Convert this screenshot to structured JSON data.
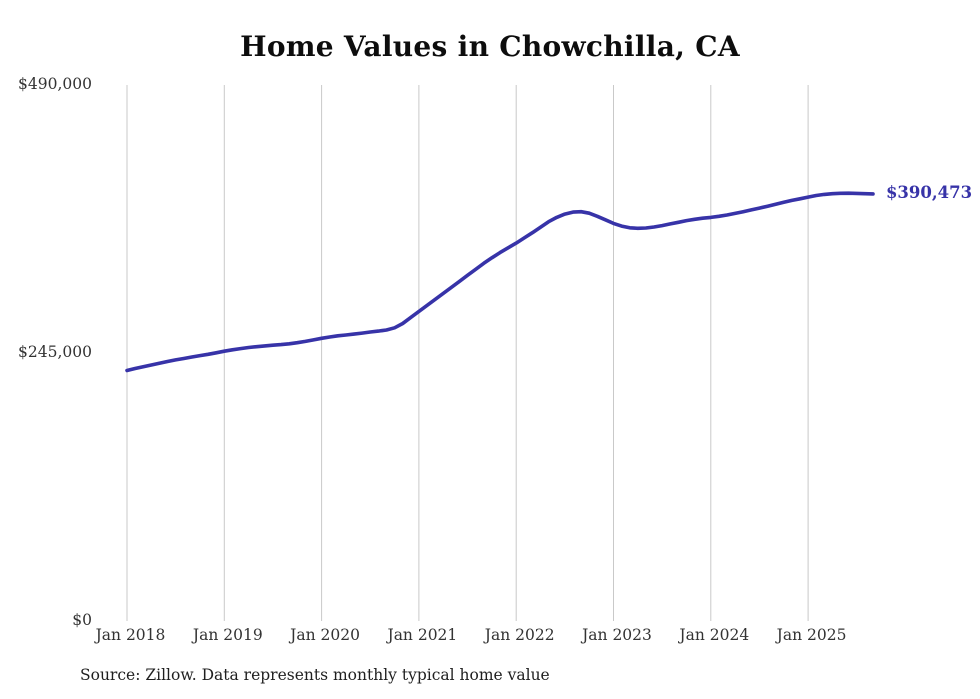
{
  "title": "Home Values in Chowchilla, CA",
  "source_note": "Source: Zillow. Data represents monthly typical home value",
  "chart_data": {
    "type": "line",
    "title": "Home Values in Chowchilla, CA",
    "series_name": "Monthly typical home value",
    "grid": "vertical-yearly",
    "legend": "none",
    "line_color": "#3733a8",
    "grid_color": "#c9c9c9",
    "ylim": [
      0,
      490000
    ],
    "y_ticks": [
      {
        "label": "$490,000",
        "value": 490000
      },
      {
        "label": "$245,000",
        "value": 245000
      },
      {
        "label": "$0",
        "value": 0
      }
    ],
    "x_tick_labels": [
      "Jan 2018",
      "Jan 2019",
      "Jan 2020",
      "Jan 2021",
      "Jan 2022",
      "Jan 2023",
      "Jan 2024",
      "Jan 2025"
    ],
    "end_label": "$390,473",
    "end_value": 390473,
    "x": [
      "2018-01",
      "2018-02",
      "2018-03",
      "2018-04",
      "2018-05",
      "2018-06",
      "2018-07",
      "2018-08",
      "2018-09",
      "2018-10",
      "2018-11",
      "2018-12",
      "2019-01",
      "2019-02",
      "2019-03",
      "2019-04",
      "2019-05",
      "2019-06",
      "2019-07",
      "2019-08",
      "2019-09",
      "2019-10",
      "2019-11",
      "2019-12",
      "2020-01",
      "2020-02",
      "2020-03",
      "2020-04",
      "2020-05",
      "2020-06",
      "2020-07",
      "2020-08",
      "2020-09",
      "2020-10",
      "2020-11",
      "2020-12",
      "2021-01",
      "2021-02",
      "2021-03",
      "2021-04",
      "2021-05",
      "2021-06",
      "2021-07",
      "2021-08",
      "2021-09",
      "2021-10",
      "2021-11",
      "2021-12",
      "2022-01",
      "2022-02",
      "2022-03",
      "2022-04",
      "2022-05",
      "2022-06",
      "2022-07",
      "2022-08",
      "2022-09",
      "2022-10",
      "2022-11",
      "2022-12",
      "2023-01",
      "2023-02",
      "2023-03",
      "2023-04",
      "2023-05",
      "2023-06",
      "2023-07",
      "2023-08",
      "2023-09",
      "2023-10",
      "2023-11",
      "2023-12",
      "2024-01",
      "2024-02",
      "2024-03",
      "2024-04",
      "2024-05",
      "2024-06",
      "2024-07",
      "2024-08",
      "2024-09",
      "2024-10",
      "2024-11",
      "2024-12",
      "2025-01",
      "2025-02",
      "2025-03",
      "2025-04",
      "2025-05",
      "2025-06",
      "2025-07",
      "2025-08",
      "2025-09"
    ],
    "values": [
      229000,
      230800,
      232500,
      234000,
      235600,
      237200,
      238700,
      240000,
      241300,
      242600,
      243800,
      245200,
      246600,
      247900,
      249000,
      250000,
      250800,
      251500,
      252100,
      252700,
      253400,
      254400,
      255600,
      257000,
      258400,
      259600,
      260700,
      261500,
      262300,
      263200,
      264200,
      265000,
      266000,
      268000,
      272000,
      277500,
      283000,
      288500,
      294000,
      299500,
      305000,
      310500,
      316000,
      321500,
      327000,
      332000,
      336800,
      341200,
      345500,
      350200,
      355000,
      360000,
      365000,
      369000,
      372000,
      373800,
      374200,
      372800,
      370000,
      366800,
      363500,
      361000,
      359500,
      359000,
      359300,
      360200,
      361500,
      363000,
      364500,
      366000,
      367200,
      368200,
      369000,
      370000,
      371200,
      372600,
      374200,
      375800,
      377500,
      379200,
      381000,
      382800,
      384500,
      386000,
      387500,
      389000,
      390000,
      390600,
      391000,
      391100,
      390900,
      390600,
      390473
    ]
  }
}
